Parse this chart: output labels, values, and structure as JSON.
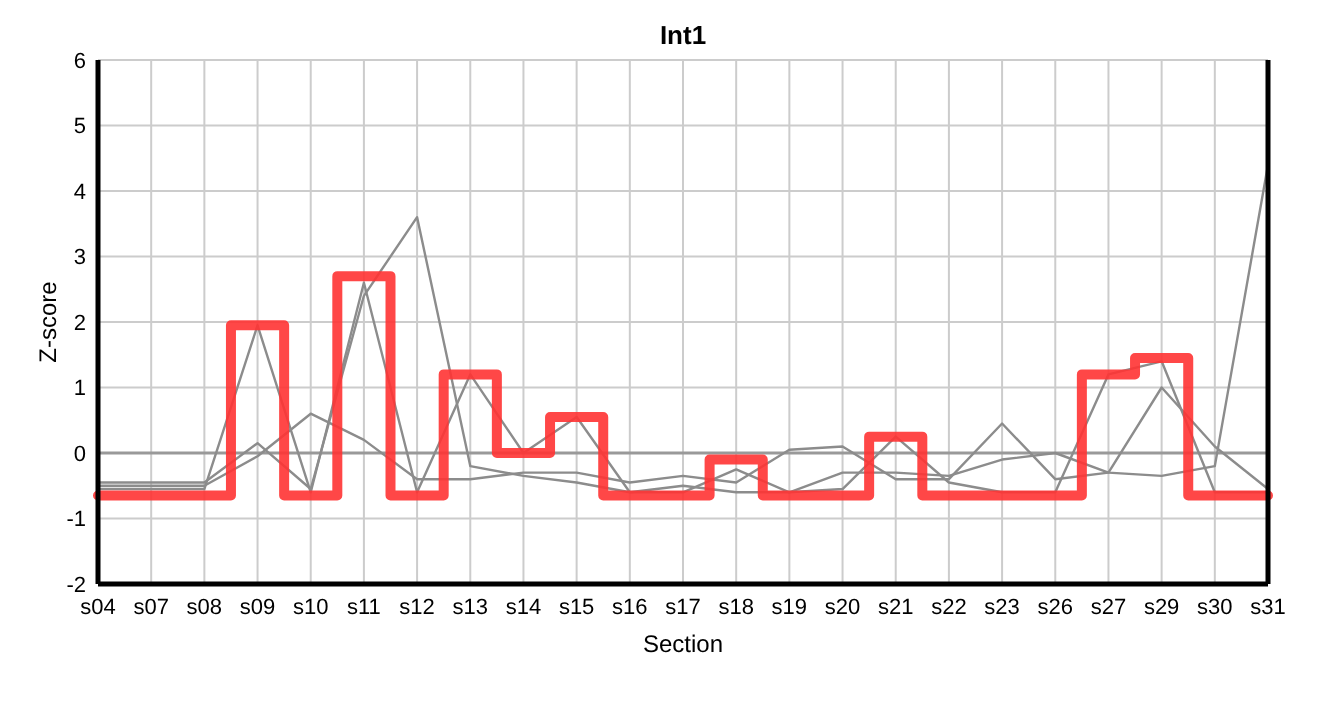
{
  "chart_data": {
    "type": "line",
    "title": "Int1",
    "xlabel": "Section",
    "ylabel": "Z-score",
    "categories": [
      "s04",
      "s07",
      "s08",
      "s09",
      "s10",
      "s11",
      "s12",
      "s13",
      "s14",
      "s15",
      "s16",
      "s17",
      "s18",
      "s19",
      "s20",
      "s21",
      "s22",
      "s23",
      "s26",
      "s27",
      "s29",
      "s30",
      "s31"
    ],
    "series": [
      {
        "color": "#8c8c8c",
        "values": [
          -0.55,
          -0.55,
          -0.55,
          1.95,
          -0.6,
          2.6,
          -0.6,
          1.2,
          0.0,
          0.55,
          -0.6,
          -0.6,
          -0.25,
          -0.6,
          -0.55,
          0.25,
          -0.45,
          -0.6,
          -0.6,
          1.2,
          1.4,
          -0.6,
          -0.6
        ]
      },
      {
        "color": "#8c8c8c",
        "values": [
          -0.45,
          -0.45,
          -0.45,
          0.15,
          -0.55,
          2.4,
          3.6,
          -0.2,
          -0.35,
          -0.45,
          -0.6,
          -0.5,
          -0.6,
          -0.6,
          -0.3,
          -0.3,
          -0.35,
          -0.1,
          0.0,
          -0.3,
          -0.35,
          -0.2,
          4.4
        ]
      },
      {
        "color": "#8c8c8c",
        "values": [
          -0.5,
          -0.5,
          -0.5,
          -0.05,
          0.6,
          0.2,
          -0.4,
          -0.4,
          -0.3,
          -0.3,
          -0.45,
          -0.35,
          -0.45,
          0.05,
          0.1,
          -0.4,
          -0.4,
          0.45,
          -0.4,
          -0.3,
          1.0,
          0.1,
          -0.55
        ]
      },
      {
        "type": "step",
        "color": "#ff3333",
        "values": [
          -0.65,
          -0.65,
          -0.65,
          1.95,
          -0.65,
          2.7,
          -0.65,
          1.2,
          0.0,
          0.55,
          -0.65,
          -0.65,
          -0.1,
          -0.65,
          -0.65,
          0.25,
          -0.65,
          -0.65,
          -0.65,
          1.2,
          1.45,
          -0.65,
          -0.65
        ]
      }
    ],
    "ylim": [
      -2,
      6
    ],
    "yticks": [
      -2,
      -1,
      0,
      1,
      2,
      3,
      4,
      5,
      6
    ],
    "grid": true,
    "ref_lines": [
      {
        "axis": "y",
        "value": 0,
        "color": "#999999"
      }
    ],
    "marker": "none"
  }
}
